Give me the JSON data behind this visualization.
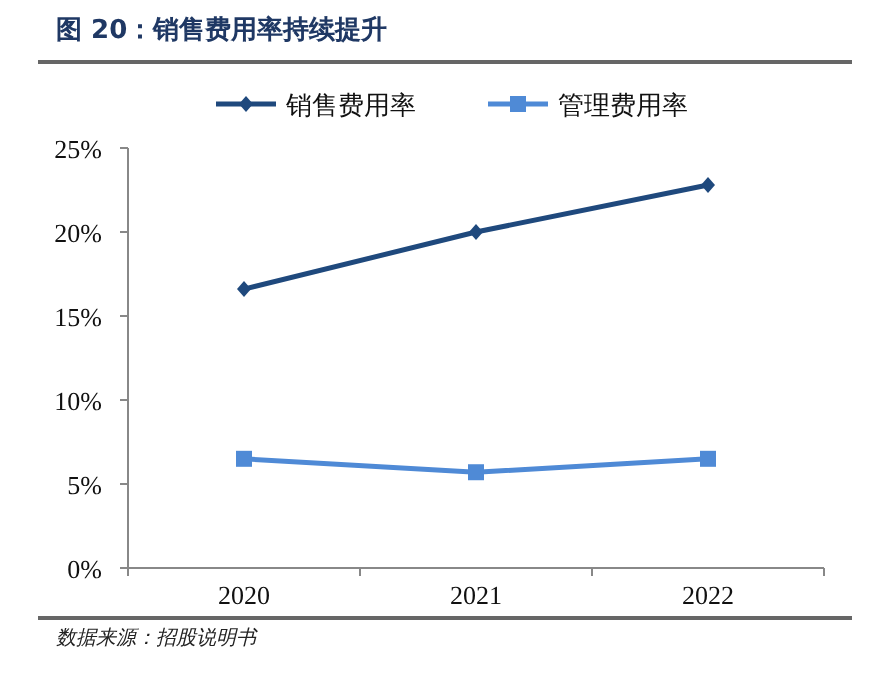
{
  "chart_data": {
    "type": "line",
    "title": "图 20：销售费用率持续提升",
    "annotations": [
      "数据来源：招股说明书"
    ],
    "categories": [
      "2020",
      "2021",
      "2022"
    ],
    "series": [
      {
        "name": "销售费用率",
        "color": "#1f497d",
        "marker": "diamond",
        "values": [
          16.6,
          20.0,
          22.8
        ]
      },
      {
        "name": "管理费用率",
        "color": "#4f8ad6",
        "marker": "square",
        "values": [
          6.5,
          5.7,
          6.5
        ]
      }
    ],
    "ylim": [
      0,
      25
    ],
    "yticks": [
      {
        "value": 0,
        "label": "0%"
      },
      {
        "value": 5,
        "label": "5%"
      },
      {
        "value": 10,
        "label": "10%"
      },
      {
        "value": 15,
        "label": "15%"
      },
      {
        "value": 20,
        "label": "20%"
      },
      {
        "value": 25,
        "label": "25%"
      }
    ],
    "grid": false,
    "legend": "top"
  }
}
